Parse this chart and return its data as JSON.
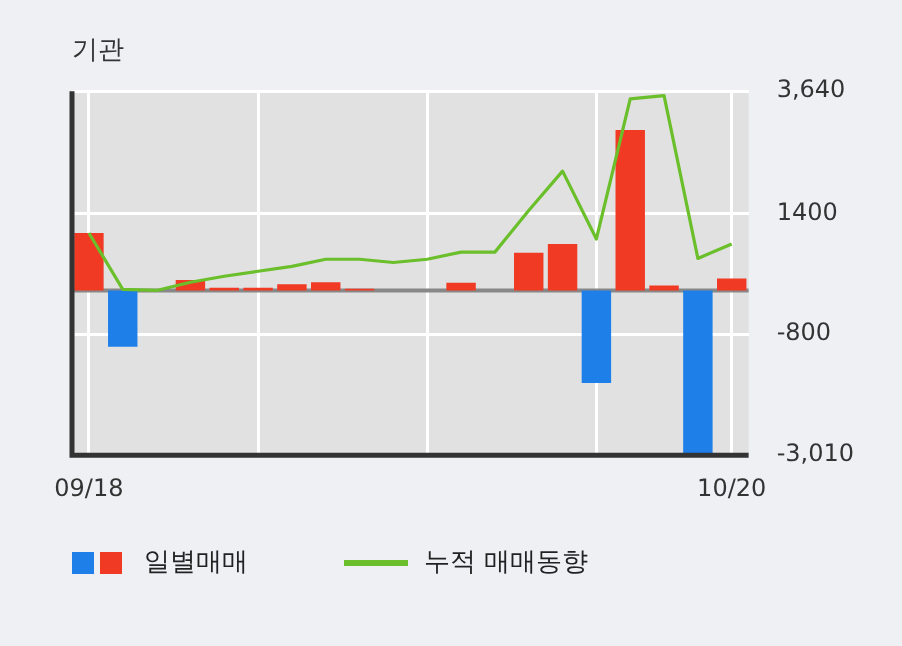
{
  "chart_data": {
    "type": "bar",
    "title": "기관",
    "categories": [
      "09/18",
      null,
      null,
      null,
      null,
      null,
      null,
      null,
      null,
      null,
      null,
      null,
      null,
      null,
      null,
      null,
      null,
      null,
      null,
      "10/20"
    ],
    "series": [
      {
        "name": "일별매매",
        "colors": [
          "#f03a24",
          "#1e7fe8",
          "#f03a24",
          "#f03a24",
          "#f03a24",
          "#f03a24",
          "#f03a24",
          "#f03a24",
          "#f03a24",
          "#f03a24",
          "#f03a24",
          "#f03a24",
          "#f03a24",
          "#f03a24",
          "#f03a24",
          "#1e7fe8",
          "#f03a24",
          "#f03a24",
          "#1e7fe8",
          "#f03a24"
        ],
        "values": [
          1050,
          -1030,
          0,
          190,
          50,
          50,
          115,
          150,
          30,
          0,
          0,
          140,
          0,
          690,
          850,
          -1690,
          2930,
          90,
          -2990,
          220
        ]
      },
      {
        "name": "누적 매매동향",
        "type": "line",
        "color": "#6abf2a",
        "values": [
          1050,
          20,
          0,
          150,
          260,
          350,
          440,
          570,
          570,
          510,
          570,
          700,
          700,
          1460,
          2180,
          940,
          3500,
          3560,
          585,
          850
        ]
      }
    ],
    "ylim": [
      -3010,
      3640
    ],
    "yticks": [
      {
        "value": 3640,
        "label": "3,640"
      },
      1400,
      -800,
      {
        "value": -3010,
        "label": "-3,010"
      }
    ],
    "ref_lines": [
      {
        "axis": "y",
        "value": 0,
        "color": "#888888"
      }
    ],
    "grid": true,
    "legend": "bottom",
    "marker": "none",
    "line_style": "solid"
  }
}
